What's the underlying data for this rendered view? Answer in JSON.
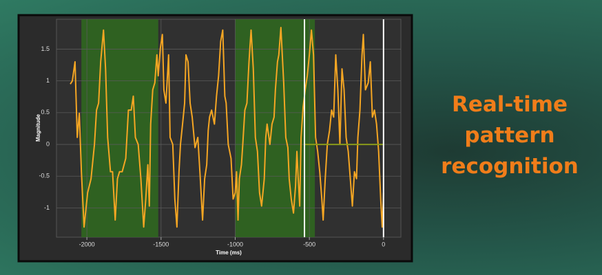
{
  "chart_data": {
    "type": "line",
    "xlabel": "Time (ms)",
    "ylabel": "Magnitude",
    "xlim": [
      -2205,
      117
    ],
    "ylim": [
      -1.46,
      1.97
    ],
    "xticks": [
      -2000,
      -1500,
      -1000,
      -500,
      0
    ],
    "yticks": [
      -1,
      -0.5,
      0,
      0.5,
      1,
      1.5
    ],
    "grid": true,
    "regions": [
      [
        -2037,
        -1519
      ],
      [
        -1000,
        -463
      ]
    ],
    "region_color": "#2f6a1e",
    "markers": [
      -533,
      0
    ],
    "marker_color": "#ffffff",
    "series": [
      {
        "color": "#f5a623",
        "x": [
          -2112,
          -2098,
          -2080,
          -2065,
          -2051,
          -2037,
          -2019,
          -1995,
          -1972,
          -1949,
          -1935,
          -1921,
          -1907,
          -1888,
          -1874,
          -1860,
          -1841,
          -1827,
          -1809,
          -1794,
          -1780,
          -1762,
          -1738,
          -1720,
          -1701,
          -1687,
          -1673,
          -1654,
          -1636,
          -1617,
          -1603,
          -1589,
          -1579,
          -1570,
          -1556,
          -1542,
          -1528,
          -1519,
          -1505,
          -1491,
          -1481,
          -1467,
          -1449,
          -1439,
          -1421,
          -1407,
          -1393,
          -1379,
          -1369,
          -1355,
          -1341,
          -1332,
          -1318,
          -1304,
          -1290,
          -1271,
          -1252,
          -1238,
          -1220,
          -1206,
          -1192,
          -1182,
          -1173,
          -1159,
          -1140,
          -1126,
          -1112,
          -1098,
          -1084,
          -1070,
          -1061,
          -1047,
          -1028,
          -1014,
          -1000,
          -991,
          -981,
          -972,
          -958,
          -949,
          -935,
          -921,
          -907,
          -893,
          -878,
          -864,
          -850,
          -836,
          -822,
          -804,
          -794,
          -785,
          -766,
          -752,
          -738,
          -729,
          -715,
          -706,
          -692,
          -673,
          -659,
          -645,
          -636,
          -622,
          -607,
          -593,
          -584,
          -575,
          -565,
          -556,
          -542,
          -528,
          -514,
          -500,
          -486,
          -472,
          -458,
          -444,
          -430,
          -416,
          -407,
          -393,
          -379,
          -364,
          -350,
          -336,
          -322,
          -308,
          -294,
          -280,
          -266,
          -252,
          -238,
          -224,
          -210,
          -196,
          -182,
          -173,
          -159,
          -145,
          -136,
          -122,
          -103,
          -89,
          -75,
          -61,
          -47,
          -33,
          -19,
          -9,
          0
        ],
        "values": [
          0.95,
          1.0,
          1.3,
          0.11,
          0.49,
          -0.43,
          -1.3,
          -0.76,
          -0.54,
          0,
          0.54,
          0.65,
          1.3,
          1.8,
          1.19,
          0.11,
          -0.43,
          -0.43,
          -1.19,
          -0.54,
          -0.43,
          -0.43,
          -0.22,
          0.54,
          0.54,
          0.76,
          0.11,
          0,
          -0.54,
          -1.3,
          -0.86,
          -0.32,
          -0.97,
          0.32,
          0.86,
          0.97,
          1.41,
          1.08,
          1.51,
          1.73,
          0.86,
          0.65,
          1.41,
          0.11,
          0,
          -0.86,
          -1.3,
          -0.43,
          0,
          0.32,
          0.65,
          1.41,
          1.3,
          0.65,
          0.43,
          -0.05,
          0.11,
          -0.43,
          -1.19,
          -0.54,
          -0.32,
          0.22,
          0.43,
          0.54,
          0.32,
          0.76,
          1.08,
          1.62,
          1.8,
          0.76,
          0.65,
          0,
          -0.22,
          -0.86,
          -0.76,
          -0.43,
          -1.19,
          -0.54,
          -0.32,
          0,
          0.54,
          0.65,
          1.3,
          1.8,
          1.19,
          0.11,
          -0.11,
          -0.76,
          -0.97,
          -0.54,
          0.11,
          0.32,
          0,
          0.32,
          0.43,
          0.86,
          1.3,
          1.41,
          1.84,
          0.97,
          0.11,
          -0.05,
          -0.54,
          -0.86,
          -1.08,
          -0.65,
          -0.11,
          -0.54,
          -0.97,
          0.11,
          0.59,
          0.86,
          1.08,
          1.41,
          1.8,
          1.41,
          0.11,
          -0.11,
          -0.43,
          -0.86,
          -1.19,
          -0.54,
          0,
          0.22,
          0.54,
          0.43,
          1.41,
          0.86,
          0,
          1.19,
          0.86,
          0.11,
          -0.11,
          -0.54,
          -0.97,
          -0.43,
          -0.54,
          0.11,
          0.54,
          1.41,
          1.73,
          0.86,
          0.97,
          1.3,
          0.43,
          0.54,
          0.32,
          -0.11,
          -0.86,
          -1.3,
          -0.76
        ]
      },
      {
        "color": "#8a9a1a",
        "x": [
          -533,
          0
        ],
        "values": [
          0,
          0
        ]
      }
    ]
  },
  "banner": {
    "text": "Real-time pattern recognition"
  }
}
